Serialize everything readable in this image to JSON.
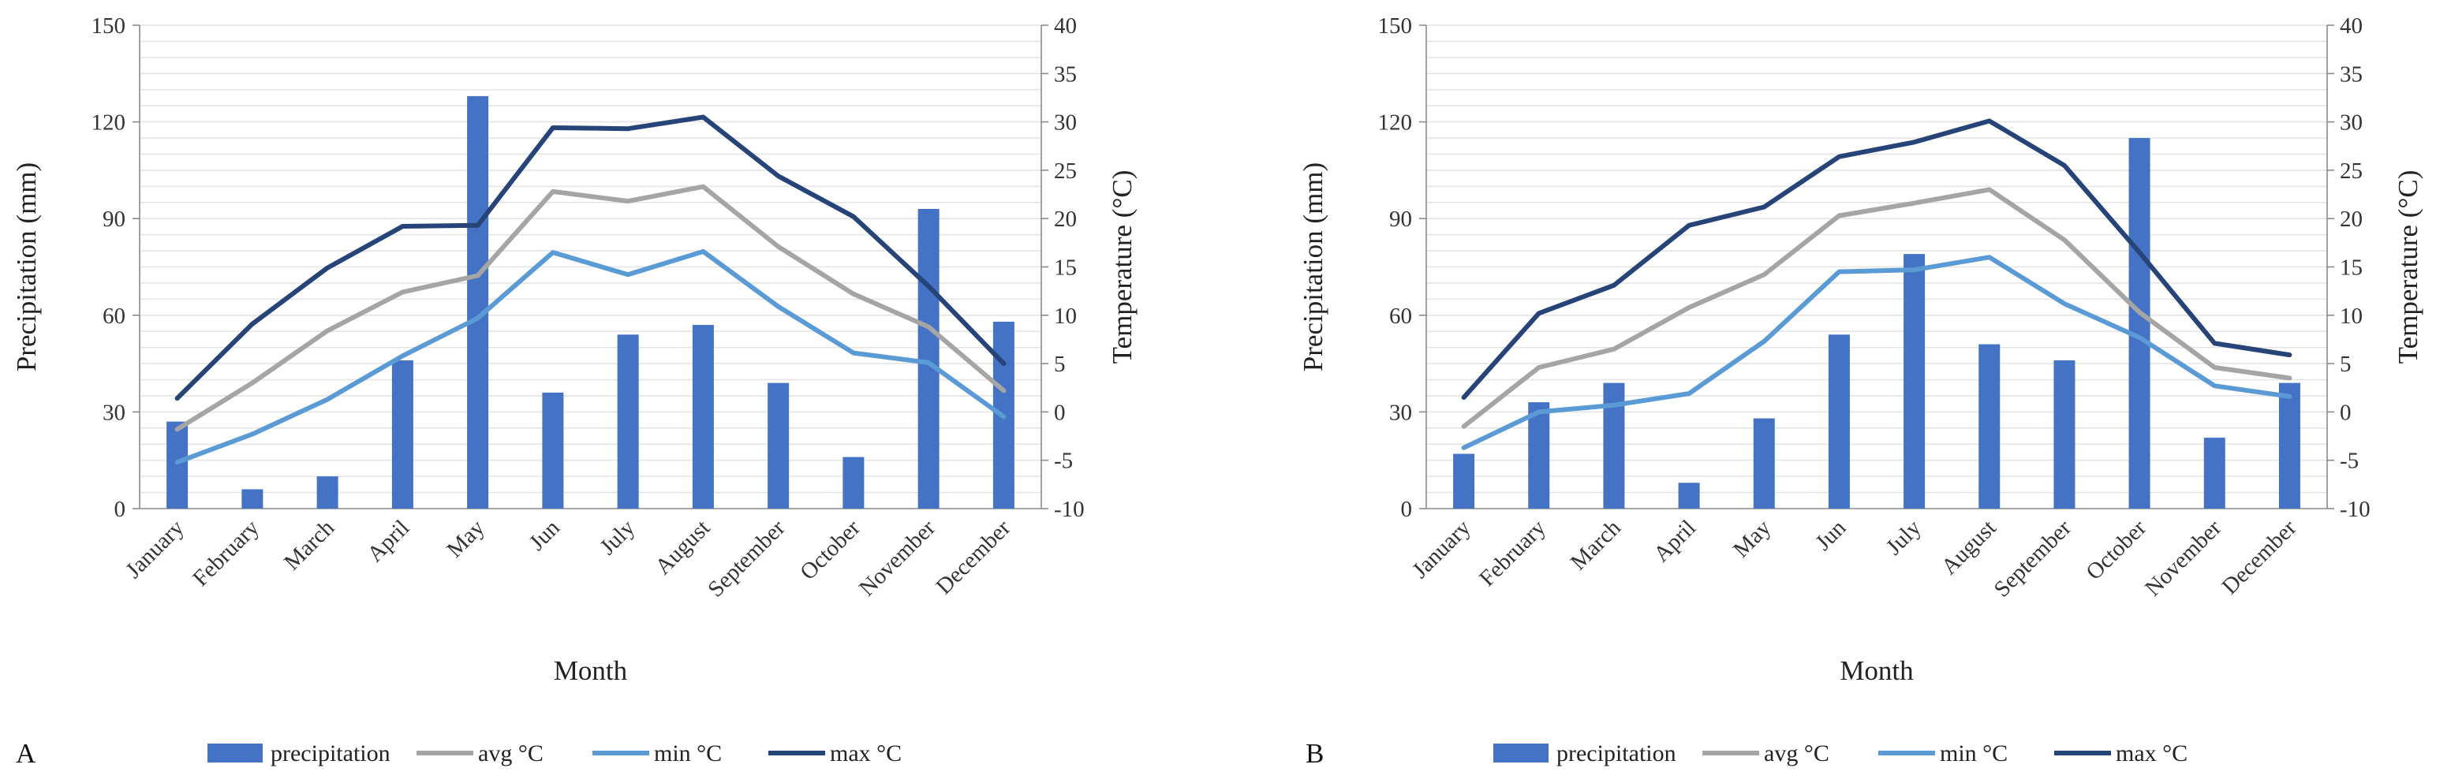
{
  "chart_data": [
    {
      "type": "bar+line",
      "panel_label": "A",
      "categories": [
        "January",
        "February",
        "March",
        "April",
        "May",
        "Jun",
        "July",
        "August",
        "September",
        "October",
        "November",
        "December"
      ],
      "xlabel": "Month",
      "ylabel_left": "Precipitation (mm)",
      "ylabel_right": "Temperature (°C)",
      "ylim_left": [
        0,
        150
      ],
      "yticks_left": [
        "0",
        "30",
        "60",
        "90",
        "120",
        "150"
      ],
      "ylim_right": [
        -10,
        40
      ],
      "yticks_right": [
        "-10",
        "-5",
        "0",
        "5",
        "10",
        "15",
        "20",
        "25",
        "30",
        "35",
        "40"
      ],
      "grid": true,
      "bars": {
        "name": "precipitation",
        "color": "#4472c4",
        "values": [
          27,
          6,
          10,
          46,
          128,
          36,
          54,
          57,
          39,
          16,
          93,
          58
        ]
      },
      "lines": [
        {
          "name": "avg °C",
          "color": "#a5a5a5",
          "values": [
            -1.8,
            3.0,
            8.4,
            12.4,
            14.1,
            22.8,
            21.8,
            23.3,
            17.1,
            12.2,
            8.8,
            2.2
          ]
        },
        {
          "name": "min °C",
          "color": "#5b9bd5",
          "values": [
            -5.2,
            -2.3,
            1.3,
            5.8,
            9.7,
            16.5,
            14.2,
            16.6,
            10.9,
            6.1,
            5.1,
            -0.5
          ]
        },
        {
          "name": "max °C",
          "color": "#264478",
          "values": [
            1.4,
            9.1,
            14.9,
            19.2,
            19.3,
            29.4,
            29.3,
            30.5,
            24.4,
            20.2,
            13.0,
            5.0
          ]
        }
      ]
    },
    {
      "type": "bar+line",
      "panel_label": "B",
      "categories": [
        "January",
        "February",
        "March",
        "April",
        "May",
        "Jun",
        "July",
        "August",
        "September",
        "October",
        "November",
        "December"
      ],
      "xlabel": "Month",
      "ylabel_left": "Precipitation (mm)",
      "ylabel_right": "Temperature (°C)",
      "ylim_left": [
        0,
        150
      ],
      "yticks_left": [
        "0",
        "30",
        "60",
        "90",
        "120",
        "150"
      ],
      "ylim_right": [
        -10,
        40
      ],
      "yticks_right": [
        "-10",
        "-5",
        "0",
        "5",
        "10",
        "15",
        "20",
        "25",
        "30",
        "35",
        "40"
      ],
      "grid": true,
      "bars": {
        "name": "precipitation",
        "color": "#4472c4",
        "values": [
          17,
          33,
          39,
          8,
          28,
          54,
          79,
          51,
          46,
          115,
          22,
          39
        ]
      },
      "lines": [
        {
          "name": "avg °C",
          "color": "#a5a5a5",
          "values": [
            -1.5,
            4.6,
            6.5,
            10.8,
            14.2,
            20.3,
            21.6,
            23.0,
            17.8,
            10.3,
            4.6,
            3.5
          ]
        },
        {
          "name": "min °C",
          "color": "#5b9bd5",
          "values": [
            -3.7,
            0.0,
            0.7,
            1.9,
            7.3,
            14.5,
            14.7,
            16.0,
            11.2,
            7.7,
            2.7,
            1.6
          ]
        },
        {
          "name": "max °C",
          "color": "#264478",
          "values": [
            1.5,
            10.2,
            13.1,
            19.3,
            21.2,
            26.4,
            27.9,
            30.1,
            25.5,
            16.5,
            7.1,
            5.9
          ]
        }
      ]
    }
  ]
}
